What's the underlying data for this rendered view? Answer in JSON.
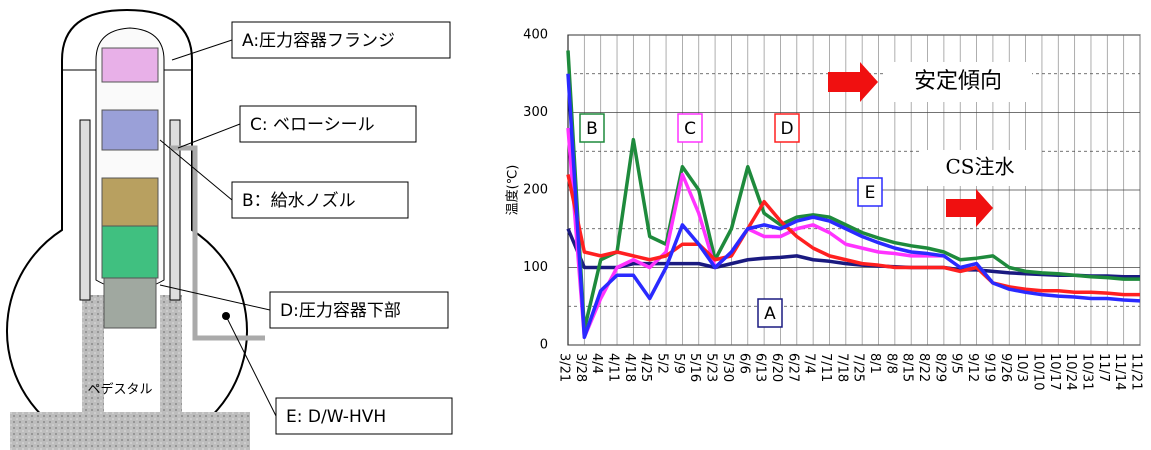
{
  "diagram": {
    "labels": [
      "A:圧力容器フランジ",
      "C: ベローシール",
      "B：給水ノズル",
      "D:圧力容器下部",
      "E: D/W-HVH"
    ],
    "pedestal": "ペデスタル"
  },
  "chart_data": {
    "type": "line",
    "ylabel": "温度(℃)",
    "annotations": [
      "安定傾向",
      "CS注水"
    ],
    "categories": [
      "3/21",
      "3/28",
      "4/4",
      "4/11",
      "4/18",
      "4/25",
      "5/2",
      "5/9",
      "5/16",
      "5/23",
      "5/30",
      "6/6",
      "6/13",
      "6/20",
      "6/27",
      "7/4",
      "7/11",
      "7/18",
      "7/25",
      "8/1",
      "8/8",
      "8/15",
      "8/22",
      "8/29",
      "9/5",
      "9/12",
      "9/19",
      "9/26",
      "10/3",
      "10/10",
      "10/17",
      "10/24",
      "10/31",
      "11/7",
      "11/14",
      "11/21"
    ],
    "ylim": [
      0,
      400
    ],
    "yticks": [
      0,
      100,
      200,
      300,
      400
    ],
    "yticks_minor": [
      50,
      150,
      250,
      350
    ],
    "grid": true,
    "series": [
      {
        "name": "A",
        "color": "#1a1a80",
        "values": [
          150,
          100,
          100,
          100,
          105,
          105,
          105,
          105,
          105,
          100,
          105,
          110,
          112,
          113,
          115,
          110,
          108,
          105,
          103,
          102,
          101,
          100,
          100,
          100,
          97,
          97,
          95,
          93,
          92,
          91,
          90,
          90,
          89,
          89,
          88,
          88
        ]
      },
      {
        "name": "B",
        "color": "#1e8a3c",
        "values": [
          380,
          20,
          110,
          120,
          265,
          140,
          130,
          230,
          200,
          110,
          150,
          230,
          170,
          155,
          165,
          168,
          165,
          155,
          145,
          138,
          132,
          128,
          125,
          120,
          110,
          112,
          115,
          100,
          95,
          93,
          92,
          90,
          88,
          87,
          85,
          85
        ]
      },
      {
        "name": "C",
        "color": "#ff33ff",
        "values": [
          280,
          10,
          60,
          100,
          110,
          100,
          120,
          220,
          170,
          100,
          120,
          150,
          140,
          140,
          150,
          155,
          145,
          130,
          125,
          120,
          118,
          115,
          115,
          115,
          null,
          null,
          null,
          null,
          null,
          null,
          null,
          null,
          null,
          null,
          null,
          null
        ]
      },
      {
        "name": "D",
        "color": "#ff2020",
        "values": [
          220,
          120,
          115,
          120,
          115,
          110,
          115,
          130,
          130,
          110,
          115,
          150,
          185,
          160,
          140,
          125,
          115,
          110,
          105,
          103,
          100,
          100,
          100,
          100,
          95,
          100,
          80,
          75,
          72,
          70,
          70,
          68,
          68,
          67,
          65,
          65
        ]
      },
      {
        "name": "E",
        "color": "#2a2aff",
        "values": [
          350,
          10,
          70,
          90,
          90,
          60,
          100,
          155,
          130,
          100,
          120,
          150,
          155,
          150,
          160,
          165,
          160,
          150,
          140,
          132,
          125,
          120,
          118,
          115,
          100,
          105,
          80,
          72,
          68,
          65,
          63,
          62,
          60,
          60,
          58,
          57
        ]
      }
    ]
  }
}
